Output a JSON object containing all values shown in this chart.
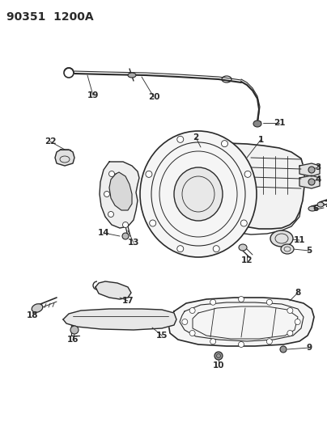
{
  "title": "90351  1200A",
  "bg_color": "#ffffff",
  "line_color": "#2a2a2a",
  "title_fontsize": 10,
  "label_fontsize": 7.5,
  "figsize": [
    4.04,
    5.33
  ],
  "dpi": 100
}
